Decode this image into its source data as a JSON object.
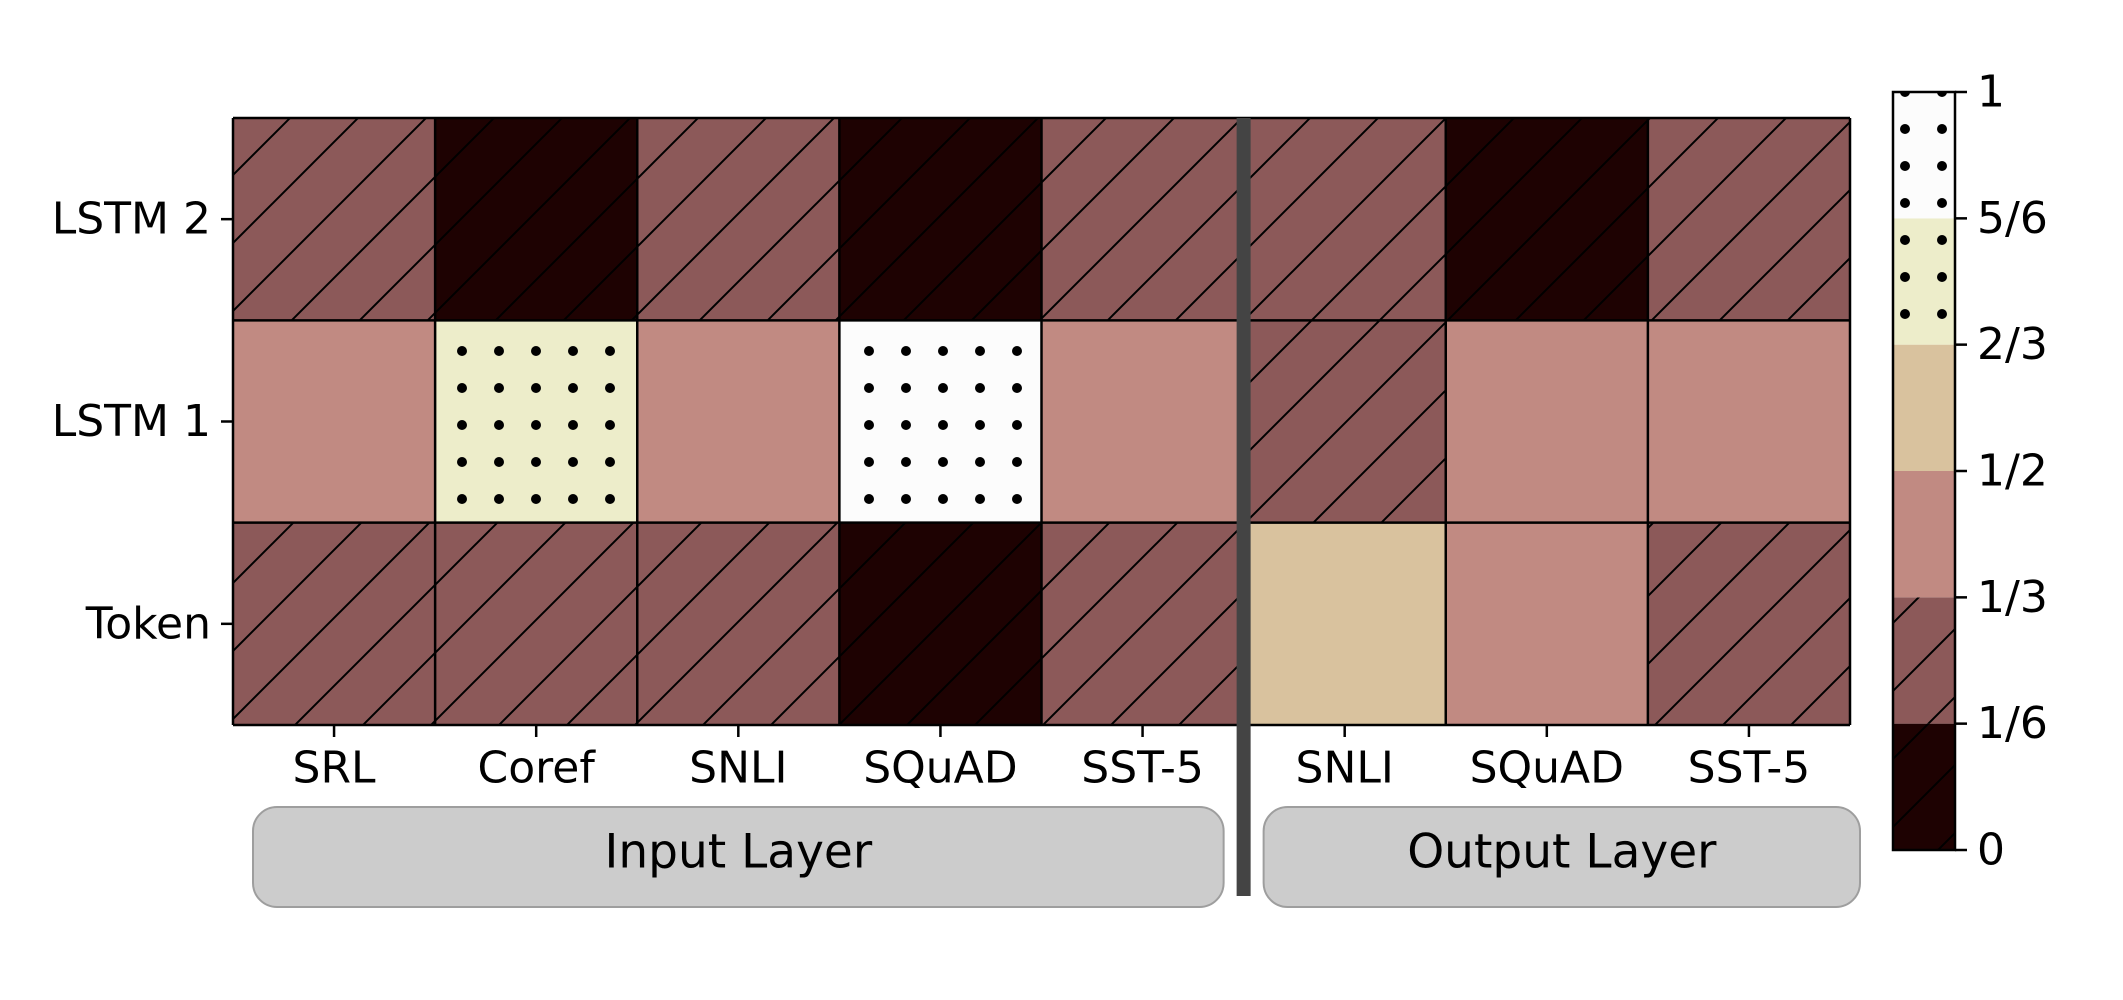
{
  "chart_data": {
    "type": "heatmap",
    "title": "",
    "xlabel": "",
    "ylabel": "",
    "rows": [
      "LSTM 2",
      "LSTM 1",
      "Token"
    ],
    "columns": [
      "SRL",
      "Coref",
      "SNLI",
      "SQuAD",
      "SST-5",
      "SNLI",
      "SQuAD",
      "SST-5"
    ],
    "groups": [
      {
        "label": "Input Layer",
        "columns": [
          0,
          1,
          2,
          3,
          4
        ]
      },
      {
        "label": "Output Layer",
        "columns": [
          5,
          6,
          7
        ]
      }
    ],
    "values": [
      [
        0.25,
        0.0,
        0.25,
        0.0,
        0.25,
        0.25,
        0.0,
        0.25
      ],
      [
        0.42,
        0.75,
        0.42,
        0.92,
        0.42,
        0.25,
        0.42,
        0.42
      ],
      [
        0.25,
        0.25,
        0.25,
        0.0,
        0.25,
        0.58,
        0.42,
        0.25
      ]
    ],
    "colorbar": {
      "range": [
        0,
        1
      ],
      "ticks": [
        {
          "value": 0,
          "label": "0"
        },
        {
          "value": 0.1667,
          "label": "1/6"
        },
        {
          "value": 0.3333,
          "label": "1/3"
        },
        {
          "value": 0.5,
          "label": "1/2"
        },
        {
          "value": 0.6667,
          "label": "2/3"
        },
        {
          "value": 0.8333,
          "label": "5/6"
        },
        {
          "value": 1,
          "label": "1"
        }
      ],
      "bins": [
        {
          "from": 0,
          "to": 0.1667,
          "color": "#1e0202",
          "pattern": "hatch"
        },
        {
          "from": 0.1667,
          "to": 0.3333,
          "color": "#8c5959",
          "pattern": "hatch"
        },
        {
          "from": 0.3333,
          "to": 0.5,
          "color": "#c18a82",
          "pattern": "none"
        },
        {
          "from": 0.5,
          "to": 0.6667,
          "color": "#d9c29e",
          "pattern": "none"
        },
        {
          "from": 0.6667,
          "to": 0.8333,
          "color": "#ededca",
          "pattern": "dots"
        },
        {
          "from": 0.8333,
          "to": 1,
          "color": "#fcfcfc",
          "pattern": "dots"
        }
      ]
    },
    "separator_after_column": 4,
    "grid": true
  }
}
